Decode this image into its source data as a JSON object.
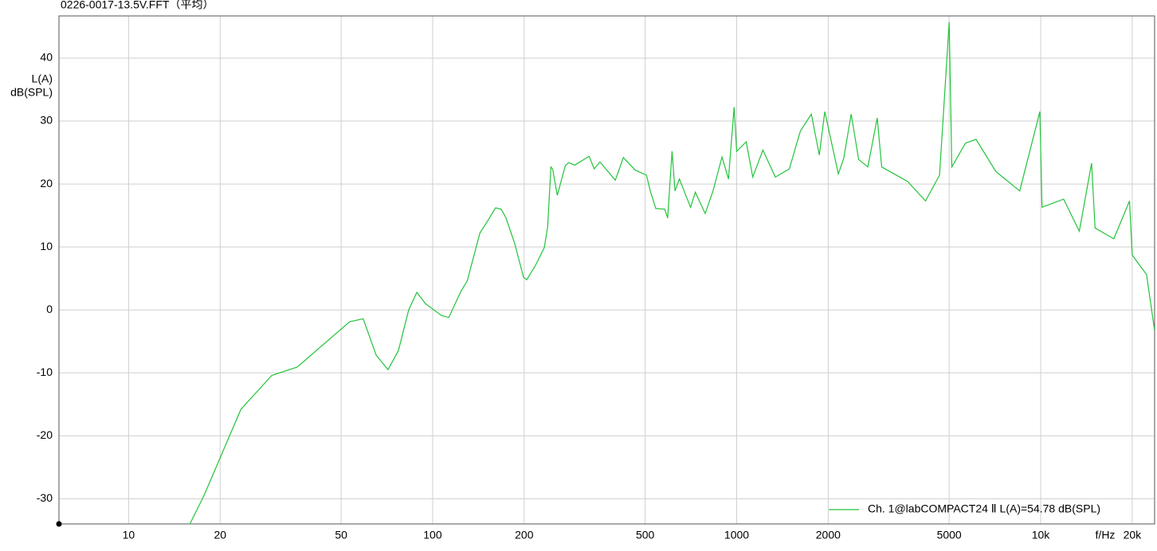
{
  "chart_data": {
    "type": "line",
    "title": "0226-0017-13.5V.FFT（平均）",
    "ylabel": [
      "L(A)",
      "dB(SPL)"
    ],
    "xlabel": "f/Hz",
    "xscale": "log",
    "grid": true,
    "legend": "lower right",
    "xlim": [
      5.9,
      23700
    ],
    "ylim": [
      -34,
      46.7
    ],
    "xticks": [
      10,
      20,
      50,
      100,
      200,
      500,
      1000,
      2000,
      5000,
      {
        "value": 10000,
        "label": "10k"
      },
      {
        "value": 20000,
        "label": "20k"
      }
    ],
    "yticks": [
      -30,
      -20,
      -10,
      0,
      10,
      20,
      30,
      40
    ],
    "x": [
      15.9,
      17.7,
      23.4,
      29.6,
      35.8,
      53.3,
      59.1,
      65.2,
      71.3,
      77.1,
      83.4,
      88.7,
      94.7,
      107,
      113,
      124,
      130,
      143,
      152,
      161,
      168,
      174,
      186,
      199,
      204,
      218,
      233,
      239,
      245,
      248,
      257,
      273,
      280,
      293,
      327,
      340,
      355,
      399,
      424,
      464,
      505,
      520,
      542,
      580,
      593,
      613,
      627,
      648,
      705,
      731,
      788,
      836,
      895,
      940,
      981,
      1000,
      1075,
      1130,
      1220,
      1340,
      1490,
      1620,
      1760,
      1870,
      1950,
      2160,
      2250,
      2380,
      2520,
      2700,
      2900,
      3000,
      3650,
      4180,
      4650,
      5000,
      5100,
      5660,
      6130,
      7120,
      8530,
      9940,
      10100,
      11900,
      13400,
      14700,
      15100,
      17400,
      19600,
      20000,
      22300,
      23700
    ],
    "series": [
      {
        "name": "Ch. 1@labCOMPACT24 Ⅱ L(A)=54.78 dB(SPL)",
        "color": "#22c33a",
        "values": [
          -34,
          -29.5,
          -15.8,
          -10.4,
          -9.1,
          -1.9,
          -1.4,
          -7.2,
          -9.5,
          -6.5,
          0,
          2.8,
          1.0,
          -0.9,
          -1.2,
          3.0,
          4.6,
          12.2,
          14.2,
          16.2,
          16.0,
          14.7,
          10.6,
          5.2,
          4.8,
          7.1,
          9.9,
          13.2,
          22.7,
          22.4,
          18.2,
          22.9,
          23.4,
          23.0,
          24.4,
          22.4,
          23.5,
          20.6,
          24.2,
          22.2,
          21.4,
          18.9,
          16.1,
          16.0,
          14.6,
          25.2,
          18.9,
          20.8,
          16.3,
          18.7,
          15.3,
          18.9,
          24.3,
          20.8,
          32.2,
          25.2,
          26.7,
          21.1,
          25.4,
          21.1,
          22.4,
          28.4,
          31.1,
          24.6,
          31.5,
          21.6,
          24.1,
          31.1,
          23.9,
          22.7,
          30.5,
          22.7,
          20.4,
          17.3,
          21.4,
          45.7,
          22.7,
          26.5,
          27.1,
          22.0,
          18.9,
          31.5,
          16.3,
          17.6,
          12.5,
          23.3,
          13.0,
          11.3,
          17.3,
          8.7,
          5.6,
          -3.3
        ]
      }
    ]
  }
}
